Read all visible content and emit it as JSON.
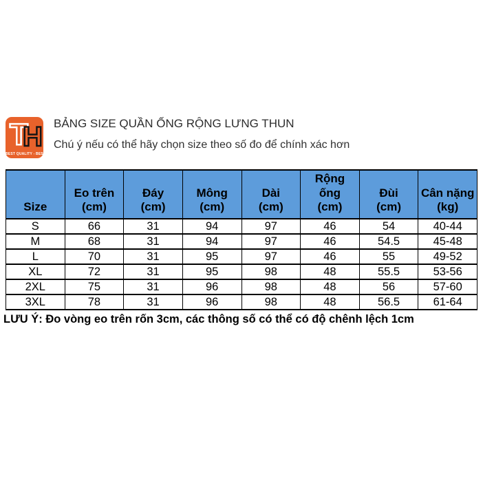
{
  "logo": {
    "letter_t": "T",
    "letter_h": "H",
    "tagline": "BEST QUALITY - BEST PRICE",
    "background_color": "#E8622B"
  },
  "header": {
    "title": "BẢNG SIZE QUẦN ỐNG RỘNG LƯNG THUN",
    "subtitle": "Chú ý nếu có thể hãy chọn size theo số đo để chính xác hơn"
  },
  "size_table": {
    "header_bg": "#5D9CDB",
    "columns": [
      "Size",
      "Eo trên\n(cm)",
      "Đáy\n(cm)",
      "Mông\n(cm)",
      "Dài\n(cm)",
      "Rộng\nống\n(cm)",
      "Đùi\n(cm)",
      "Cân nặng\n(kg)"
    ],
    "rows": [
      [
        "S",
        "66",
        "31",
        "94",
        "97",
        "46",
        "54",
        "40-44"
      ],
      [
        "M",
        "68",
        "31",
        "94",
        "97",
        "46",
        "54.5",
        "45-48"
      ],
      [
        "L",
        "70",
        "31",
        "95",
        "97",
        "46",
        "55",
        "49-52"
      ],
      [
        "XL",
        "72",
        "31",
        "95",
        "98",
        "48",
        "55.5",
        "53-56"
      ],
      [
        "2XL",
        "75",
        "31",
        "96",
        "98",
        "48",
        "56",
        "57-60"
      ],
      [
        "3XL",
        "78",
        "31",
        "96",
        "98",
        "48",
        "56.5",
        "61-64"
      ]
    ]
  },
  "note": "LƯU Ý: Đo vòng eo trên rốn 3cm, các thông số có thể có độ chênh lệch 1cm"
}
